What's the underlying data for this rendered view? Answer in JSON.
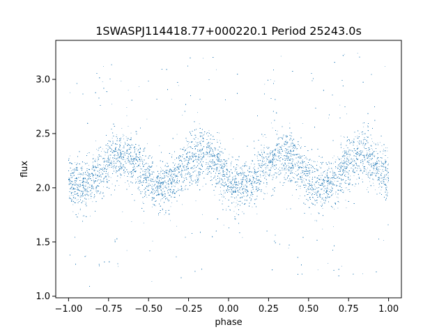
{
  "chart_data": {
    "type": "scatter",
    "title": "1SWASPJ114418.77+000220.1 Period 25243.0s",
    "xlabel": "phase",
    "ylabel": "flux",
    "xlim": [
      -1.08,
      1.08
    ],
    "ylim": [
      0.985,
      3.36
    ],
    "x_ticks": [
      -1.0,
      -0.75,
      -0.5,
      -0.25,
      0.0,
      0.25,
      0.5,
      0.75,
      1.0
    ],
    "x_tick_labels": [
      "−1.00",
      "−0.75",
      "−0.50",
      "−0.25",
      "0.00",
      "0.25",
      "0.50",
      "0.75",
      "1.00"
    ],
    "y_ticks": [
      1.0,
      1.5,
      2.0,
      2.5,
      3.0
    ],
    "y_tick_labels": [
      "1.0",
      "1.5",
      "2.0",
      "2.5",
      "3.0"
    ],
    "grid": false,
    "legend": "none",
    "series": [
      {
        "point_color": "#1f77b4",
        "phase_range": [
          -1.0,
          1.0
        ],
        "flux_range": [
          1.08,
          3.25
        ],
        "model": "double-humped periodic light curve, two cycles per unit phase",
        "mean_flux": 2.15,
        "amplitude": 0.15,
        "peak_phases": [
          -0.67,
          -0.18,
          0.33,
          0.82
        ],
        "trough_phases": [
          -0.92,
          -0.42,
          0.08,
          0.58
        ],
        "scatter_sigma": 0.12,
        "point_count": 30000
      }
    ]
  }
}
